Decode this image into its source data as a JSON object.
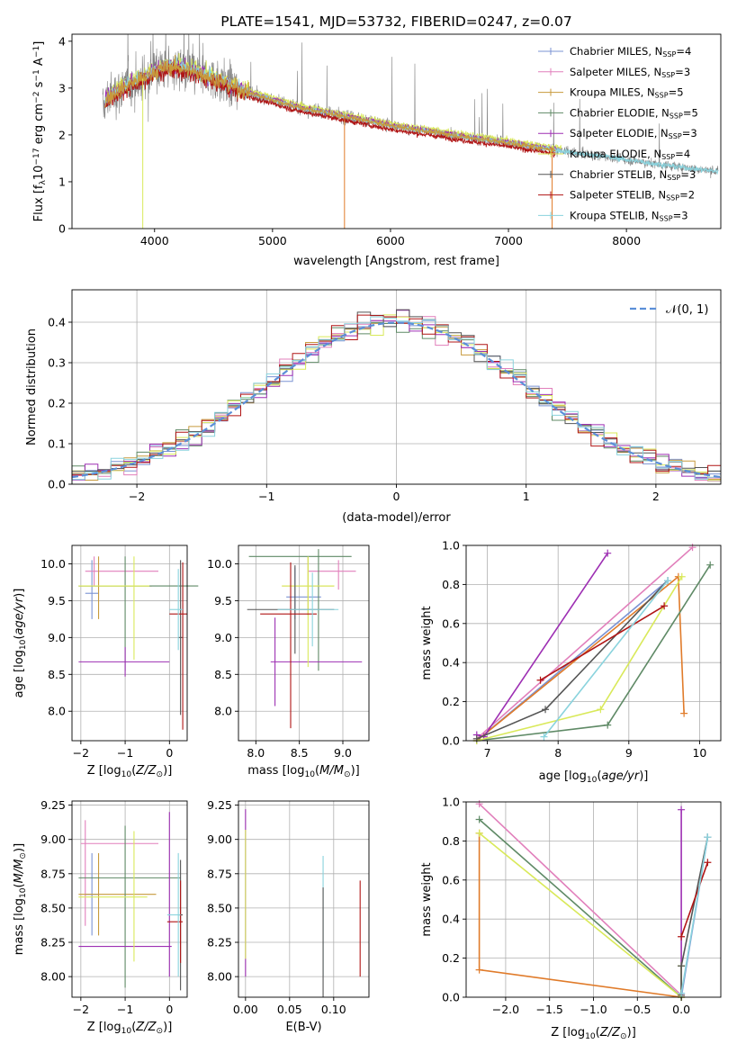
{
  "colors": {
    "Chabrier MILES": "#7b93d3",
    "Salpeter MILES": "#e17fbb",
    "Kroupa MILES": "#c79a3c",
    "Chabrier ELODIE": "#5f8a66",
    "Salpeter ELODIE": "#9d2fb3",
    "Kroupa ELODIE": "#d9e95a",
    "Chabrier STELIB": "#555555",
    "Salpeter STELIB": "#b01515",
    "Kroupa STELIB": "#8ad3dd",
    "data": "#7f7f7f",
    "orange": "#e07b2a",
    "gauss": "#5b8fd8"
  },
  "chart_data": [
    {
      "type": "line",
      "title": "PLATE=1541, MJD=53732, FIBERID=0247, z=0.07",
      "xlabel": "wavelength [Angstrom, rest frame]",
      "ylabel": "Flux [f$_\\lambda$10$^{-17}$ erg cm$^{-2}$ s$^{-1}$ A$^{-1}$]",
      "ylabel_parts": [
        "Flux [f",
        "λ",
        "10",
        "−17",
        " erg cm",
        "−2",
        " s",
        "−1",
        " A",
        "−1",
        "]"
      ],
      "xlim": [
        3300,
        8800
      ],
      "ylim": [
        0,
        4.15
      ],
      "xticks": [
        "4000",
        "5000",
        "6000",
        "7000",
        "8000"
      ],
      "yticks": [
        "0",
        "1",
        "2",
        "3",
        "4"
      ],
      "continuum": [
        [
          3560,
          2.55
        ],
        [
          3600,
          2.8
        ],
        [
          3700,
          2.95
        ],
        [
          3800,
          3.1
        ],
        [
          3900,
          3.2
        ],
        [
          4000,
          3.35
        ],
        [
          4100,
          3.45
        ],
        [
          4200,
          3.45
        ],
        [
          4300,
          3.35
        ],
        [
          4400,
          3.3
        ],
        [
          4500,
          3.2
        ],
        [
          4600,
          3.1
        ],
        [
          4700,
          3.0
        ],
        [
          4800,
          2.9
        ],
        [
          4900,
          2.82
        ],
        [
          5000,
          2.75
        ],
        [
          5200,
          2.6
        ],
        [
          5400,
          2.5
        ],
        [
          5600,
          2.4
        ],
        [
          5800,
          2.3
        ],
        [
          6000,
          2.2
        ],
        [
          6200,
          2.12
        ],
        [
          6400,
          2.05
        ],
        [
          6600,
          1.97
        ],
        [
          6800,
          1.9
        ],
        [
          7000,
          1.83
        ],
        [
          7200,
          1.75
        ],
        [
          7400,
          1.68
        ],
        [
          7600,
          1.6
        ],
        [
          7800,
          1.55
        ],
        [
          8000,
          1.47
        ],
        [
          8200,
          1.4
        ],
        [
          8400,
          1.33
        ],
        [
          8600,
          1.27
        ],
        [
          8780,
          1.22
        ]
      ],
      "legend": [
        {
          "label": "Chabrier MILES, N",
          "n": "4"
        },
        {
          "label": "Salpeter MILES, N",
          "n": "3"
        },
        {
          "label": "Kroupa MILES, N",
          "n": "5"
        },
        {
          "label": "Chabrier ELODIE, N",
          "n": "5"
        },
        {
          "label": "Salpeter ELODIE, N",
          "n": "3"
        },
        {
          "label": "Kroupa ELODIE, N",
          "n": "4"
        },
        {
          "label": "Chabrier STELIB, N",
          "n": "3"
        },
        {
          "label": "Salpeter STELIB, N",
          "n": "2"
        },
        {
          "label": "Kroupa STELIB, N",
          "n": "3"
        }
      ],
      "legend_sub": "SSP",
      "legend_loc": "upper right"
    },
    {
      "type": "bar",
      "xlabel": "(data-model)/error",
      "ylabel": "Normed distribution",
      "xlim": [
        -2.5,
        2.5
      ],
      "ylim": [
        0,
        0.48
      ],
      "xticks": [
        "−2",
        "−1",
        "0",
        "1",
        "2"
      ],
      "yticks": [
        "0.0",
        "0.1",
        "0.2",
        "0.3",
        "0.4"
      ],
      "legend": "𝒩(0, 1)",
      "bins": 50,
      "grid": true
    },
    {
      "type": "scatter",
      "xlabel": "Z [log10(Z/Z⊙)]",
      "xlabel_parts": [
        "Z [log",
        "10",
        "(",
        "Z/Z",
        "⊙",
        ")]"
      ],
      "ylabel": "age [log10(age/yr)]",
      "ylabel_parts": [
        "age  [log",
        "10",
        "(",
        "age/yr",
        ")]"
      ],
      "xlim": [
        -2.2,
        0.4
      ],
      "ylim": [
        7.6,
        10.25
      ],
      "xticks": [
        "−2",
        "−1",
        "0"
      ],
      "yticks": [
        "8.0",
        "8.5",
        "9.0",
        "9.5",
        "10.0"
      ],
      "error_bars": [
        {
          "series": "Chabrier MILES",
          "x": -1.75,
          "xerr": [
            0.15,
            0.15
          ],
          "y": 9.6,
          "yerr": [
            0.35,
            0.45
          ]
        },
        {
          "series": "Salpeter MILES",
          "x": -1.7,
          "xerr": [
            0.2,
            1.45
          ],
          "y": 9.9,
          "yerr": [
            0.2,
            0.2
          ]
        },
        {
          "series": "Kroupa MILES",
          "x": -1.6,
          "xerr": [
            0.45,
            1.2
          ],
          "y": 9.7,
          "yerr": [
            0.45,
            0.4
          ]
        },
        {
          "series": "Chabrier ELODIE",
          "x": -1.0,
          "xerr": [
            1.05,
            1.65
          ],
          "y": 9.7,
          "yerr": [
            1.15,
            0.4
          ]
        },
        {
          "series": "Salpeter ELODIE",
          "x": -1.0,
          "xerr": [
            1.05,
            1.0
          ],
          "y": 8.67,
          "yerr": [
            0.2,
            0.2
          ]
        },
        {
          "series": "Kroupa ELODIE",
          "x": -0.8,
          "xerr": [
            1.25,
            0.35
          ],
          "y": 9.7,
          "yerr": [
            1.0,
            0.4
          ]
        },
        {
          "series": "Chabrier STELIB",
          "x": 0.25,
          "xerr": [
            0.05,
            0.05
          ],
          "y": 9.0,
          "yerr": [
            1.05,
            1.05
          ]
        },
        {
          "series": "Salpeter STELIB",
          "x": 0.3,
          "xerr": [
            0.3,
            0.1
          ],
          "y": 9.32,
          "yerr": [
            1.57,
            0.7
          ]
        },
        {
          "series": "Kroupa STELIB",
          "x": 0.2,
          "xerr": [
            0.2,
            0.1
          ],
          "y": 9.38,
          "yerr": [
            0.55,
            0.55
          ]
        }
      ]
    },
    {
      "type": "scatter",
      "xlabel": "mass [log10(M/M⊙)]",
      "xlabel_parts": [
        "mass [log",
        "10",
        "(",
        "M/M",
        "⊙",
        ")]"
      ],
      "xlim": [
        7.8,
        9.3
      ],
      "ylim": [
        7.6,
        10.25
      ],
      "xticks": [
        "8.0",
        "8.5",
        "9.0"
      ],
      "yticks": [
        "8.0",
        "8.5",
        "9.0",
        "9.5",
        "10.0"
      ],
      "error_bars": [
        {
          "series": "Chabrier MILES",
          "x": 8.45,
          "xerr": [
            0.1,
            0.3
          ],
          "y": 9.55,
          "yerr": [
            0.3,
            0.4
          ]
        },
        {
          "series": "Salpeter MILES",
          "x": 8.95,
          "xerr": [
            0.35,
            0.2
          ],
          "y": 9.9,
          "yerr": [
            0.25,
            0.15
          ]
        },
        {
          "series": "Kroupa MILES",
          "x": 8.6,
          "xerr": [
            0.3,
            0.3
          ],
          "y": 9.7,
          "yerr": [
            0.4,
            0.4
          ]
        },
        {
          "series": "Chabrier ELODIE",
          "x": 8.72,
          "xerr": [
            0.8,
            0.38
          ],
          "y": 10.1,
          "yerr": [
            1.55,
            0.1
          ]
        },
        {
          "series": "Salpeter ELODIE",
          "x": 8.22,
          "xerr": [
            0.05,
            1.0
          ],
          "y": 8.67,
          "yerr": [
            0.6,
            0.6
          ]
        },
        {
          "series": "Kroupa ELODIE",
          "x": 8.6,
          "xerr": [
            0.3,
            0.3
          ],
          "y": 9.7,
          "yerr": [
            1.1,
            0.4
          ]
        },
        {
          "series": "Chabrier STELIB",
          "x": 8.45,
          "xerr": [
            0.55,
            0.45
          ],
          "y": 9.38,
          "yerr": [
            0.6,
            0.6
          ]
        },
        {
          "series": "Salpeter STELIB",
          "x": 8.4,
          "xerr": [
            0.35,
            0.3
          ],
          "y": 9.32,
          "yerr": [
            1.55,
            0.7
          ]
        },
        {
          "series": "Kroupa STELIB",
          "x": 8.65,
          "xerr": [
            0.4,
            0.3
          ],
          "y": 9.38,
          "yerr": [
            0.5,
            0.5
          ]
        }
      ]
    },
    {
      "type": "line",
      "xlabel": "age [log10(age/yr)]",
      "xlabel_parts": [
        "age  [log",
        "10",
        "(",
        "age/yr",
        ")]"
      ],
      "ylabel": "mass weight",
      "xlim": [
        6.7,
        10.3
      ],
      "ylim": [
        0,
        1.0
      ],
      "xticks": [
        "7",
        "8",
        "9",
        "10"
      ],
      "yticks": [
        "0.0",
        "0.2",
        "0.4",
        "0.6",
        "0.8",
        "1.0"
      ],
      "series": [
        {
          "name": "Chabrier MILES",
          "x": [
            6.85,
            9.55
          ],
          "y": [
            0.0,
            0.82
          ]
        },
        {
          "name": "Salpeter MILES",
          "x": [
            6.85,
            9.9
          ],
          "y": [
            0.01,
            0.99
          ]
        },
        {
          "name": "Kroupa MILES",
          "x": [
            6.85,
            9.7,
            9.78
          ],
          "y": [
            0.0,
            0.84,
            0.14
          ]
        },
        {
          "name": "Chabrier ELODIE",
          "x": [
            6.85,
            8.7,
            10.15
          ],
          "y": [
            0.0,
            0.08,
            0.9
          ]
        },
        {
          "name": "Salpeter ELODIE",
          "x": [
            6.85,
            6.95,
            8.7
          ],
          "y": [
            0.03,
            0.02,
            0.96
          ]
        },
        {
          "name": "Kroupa ELODIE",
          "x": [
            6.85,
            8.6,
            9.75
          ],
          "y": [
            0.0,
            0.16,
            0.84
          ]
        },
        {
          "name": "Chabrier STELIB",
          "x": [
            6.85,
            7.82,
            9.55
          ],
          "y": [
            0.01,
            0.16,
            0.82
          ]
        },
        {
          "name": "Salpeter STELIB",
          "x": [
            7.75,
            9.5
          ],
          "y": [
            0.31,
            0.69
          ]
        },
        {
          "name": "Kroupa STELIB",
          "x": [
            7.8,
            9.55
          ],
          "y": [
            0.02,
            0.82
          ]
        }
      ]
    },
    {
      "type": "scatter",
      "xlabel": "Z [log10(Z/Z⊙)]",
      "xlabel_parts": [
        "Z [log",
        "10",
        "(",
        "Z/Z",
        "⊙",
        ")]"
      ],
      "ylabel": "mass [log10(M/M⊙)]",
      "ylabel_parts": [
        "mass [log",
        "10",
        "(",
        "M/M",
        "⊙",
        ")]"
      ],
      "xlim": [
        -2.2,
        0.4
      ],
      "ylim": [
        7.85,
        9.28
      ],
      "xticks": [
        "−2",
        "−1",
        "0"
      ],
      "yticks": [
        "8.00",
        "8.25",
        "8.50",
        "8.75",
        "9.00",
        "9.25"
      ],
      "error_bars": [
        {
          "series": "Chabrier MILES",
          "x": -1.75,
          "xerr": [
            0.15,
            0.15
          ],
          "y": 8.6,
          "yerr": [
            0.3,
            0.3
          ]
        },
        {
          "series": "Salpeter MILES",
          "x": -1.9,
          "xerr": [
            0.1,
            1.65
          ],
          "y": 8.97,
          "yerr": [
            0.6,
            0.17
          ]
        },
        {
          "series": "Kroupa MILES",
          "x": -1.6,
          "xerr": [
            0.45,
            1.3
          ],
          "y": 8.6,
          "yerr": [
            0.3,
            0.3
          ]
        },
        {
          "series": "Chabrier ELODIE",
          "x": -1.0,
          "xerr": [
            1.05,
            1.25
          ],
          "y": 8.72,
          "yerr": [
            0.8,
            0.38
          ]
        },
        {
          "series": "Salpeter ELODIE",
          "x": 0.0,
          "xerr": [
            2.05,
            0.05
          ],
          "y": 8.22,
          "yerr": [
            0.22,
            0.98
          ]
        },
        {
          "series": "Kroupa ELODIE",
          "x": -0.8,
          "xerr": [
            1.25,
            0.3
          ],
          "y": 8.58,
          "yerr": [
            0.47,
            0.48
          ]
        },
        {
          "series": "Chabrier STELIB",
          "x": 0.25,
          "xerr": [
            0.05,
            0.05
          ],
          "y": 8.45,
          "yerr": [
            0.55,
            0.4
          ]
        },
        {
          "series": "Salpeter STELIB",
          "x": 0.25,
          "xerr": [
            0.3,
            0.05
          ],
          "y": 8.4,
          "yerr": [
            0.3,
            0.3
          ]
        },
        {
          "series": "Kroupa STELIB",
          "x": 0.2,
          "xerr": [
            0.25,
            0.05
          ],
          "y": 8.45,
          "yerr": [
            0.45,
            0.45
          ]
        }
      ]
    },
    {
      "type": "scatter",
      "xlabel": "E(B-V)",
      "xlim": [
        -0.008,
        0.14
      ],
      "ylim": [
        7.85,
        9.28
      ],
      "xticks": [
        "0.00",
        "0.05",
        "0.10"
      ],
      "yticks": [
        "8.00",
        "8.25",
        "8.50",
        "8.75",
        "9.00",
        "9.25"
      ],
      "error_bars": [
        {
          "series": "Salpeter ELODIE",
          "x": 0.0,
          "xerr": [
            0,
            0
          ],
          "y": 8.6,
          "yerr": [
            0.6,
            0.62
          ]
        },
        {
          "series": "Kroupa ELODIE",
          "x": 0.0,
          "xerr": [
            0,
            0
          ],
          "y": 8.6,
          "yerr": [
            0.47,
            0.47
          ]
        },
        {
          "series": "Kroupa STELIB",
          "x": 0.088,
          "xerr": [
            0,
            0
          ],
          "y": 8.45,
          "yerr": [
            0.45,
            0.43
          ]
        },
        {
          "series": "Chabrier STELIB",
          "x": 0.088,
          "xerr": [
            0,
            0
          ],
          "y": 8.25,
          "yerr": [
            0.4,
            0.4
          ]
        },
        {
          "series": "Salpeter STELIB",
          "x": 0.13,
          "xerr": [
            0,
            0
          ],
          "y": 8.35,
          "yerr": [
            0.35,
            0.35
          ]
        }
      ]
    },
    {
      "type": "line",
      "xlabel": "Z [log10(Z/Z⊙)]",
      "xlabel_parts": [
        "Z [log",
        "10",
        "(",
        "Z/Z",
        "⊙",
        ")]"
      ],
      "ylabel": "mass weight",
      "xlim": [
        -2.45,
        0.45
      ],
      "ylim": [
        0,
        1.0
      ],
      "xticks": [
        "−2.0",
        "−1.5",
        "−1.0",
        "−0.5",
        "0.0"
      ],
      "yticks": [
        "0.0",
        "0.2",
        "0.4",
        "0.6",
        "0.8",
        "1.0"
      ],
      "series": [
        {
          "name": "Chabrier MILES",
          "x": [
            0.0,
            0.3
          ],
          "y": [
            0.0,
            0.82
          ]
        },
        {
          "name": "Salpeter MILES",
          "x": [
            -2.3,
            0.0
          ],
          "y": [
            0.99,
            0.01
          ]
        },
        {
          "name": "Kroupa MILES",
          "x": [
            -2.3,
            -2.3,
            0.0
          ],
          "y": [
            0.84,
            0.14,
            0.0
          ]
        },
        {
          "name": "Chabrier ELODIE",
          "x": [
            -2.3,
            0.0,
            0.0
          ],
          "y": [
            0.91,
            0.0,
            0.16
          ]
        },
        {
          "name": "Salpeter ELODIE",
          "x": [
            0.0,
            0.0
          ],
          "y": [
            0.02,
            0.96
          ]
        },
        {
          "name": "Kroupa ELODIE",
          "x": [
            -2.3,
            0.0,
            0.0
          ],
          "y": [
            0.84,
            0.0,
            0.16
          ]
        },
        {
          "name": "Chabrier STELIB",
          "x": [
            0.0,
            0.0,
            0.3
          ],
          "y": [
            0.01,
            0.16,
            0.82
          ]
        },
        {
          "name": "Salpeter STELIB",
          "x": [
            0.0,
            0.3
          ],
          "y": [
            0.31,
            0.69
          ]
        },
        {
          "name": "Kroupa STELIB",
          "x": [
            0.0,
            0.3
          ],
          "y": [
            0.02,
            0.82
          ]
        }
      ]
    }
  ]
}
